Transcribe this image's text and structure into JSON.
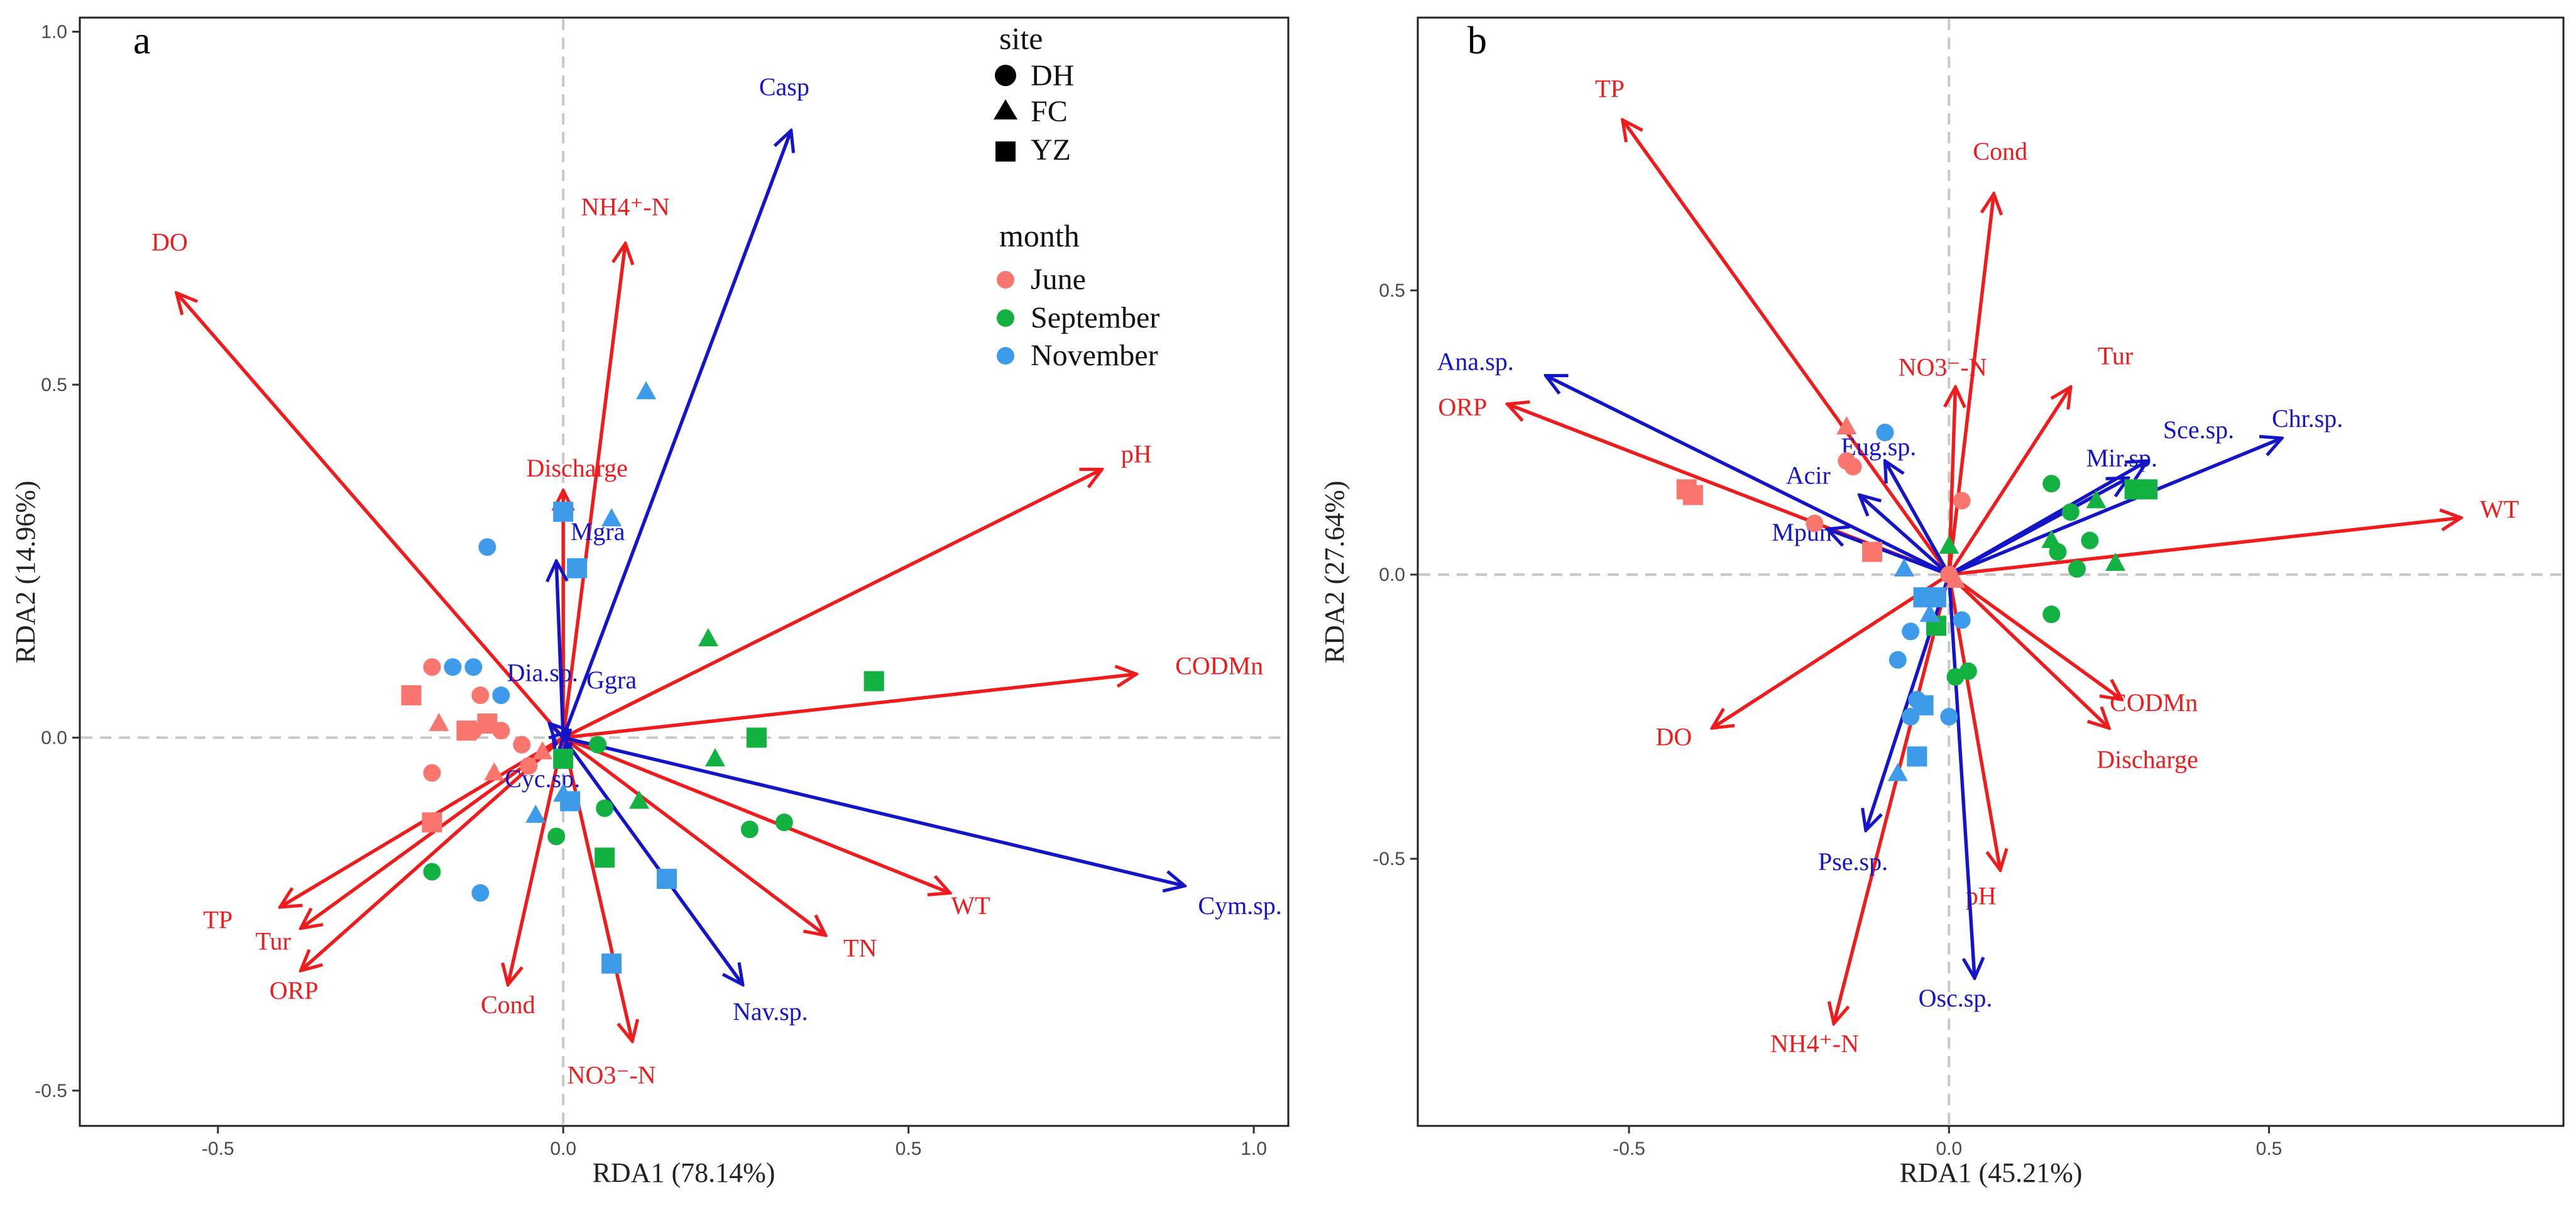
{
  "colors": {
    "env": "#ee1c1c",
    "species": "#1515c8",
    "June": "#f8766d",
    "September": "#13b141",
    "November": "#3d9be9"
  },
  "chart_data": [
    {
      "type": "scatter",
      "panel": "a",
      "xlabel": "RDA1 (78.14%)",
      "ylabel": "RDA2 (14.96%)",
      "xlim": [
        -0.7,
        1.05
      ],
      "ylim": [
        -0.55,
        1.02
      ],
      "xticks": [
        -0.5,
        0.0,
        0.5,
        1.0
      ],
      "xtick_labels": [
        "-0.5",
        "0.0",
        "0.5",
        "1.0"
      ],
      "yticks": [
        -0.5,
        0.0,
        0.5,
        1.0
      ],
      "ytick_labels": [
        "-0.5",
        "0.0",
        "0.5",
        "1.0"
      ],
      "legend": {
        "site_title": "site",
        "sites": [
          {
            "label": "DH",
            "shape": "circle"
          },
          {
            "label": "FC",
            "shape": "triangle"
          },
          {
            "label": "YZ",
            "shape": "square"
          }
        ],
        "month_title": "month",
        "months": [
          {
            "label": "June",
            "color_key": "June"
          },
          {
            "label": "September",
            "color_key": "September"
          },
          {
            "label": "November",
            "color_key": "November"
          }
        ]
      },
      "env_vectors": [
        {
          "name": "DO",
          "x": -0.56,
          "y": 0.63,
          "label": "DO",
          "lx": -0.57,
          "ly": 0.69
        },
        {
          "name": "NH4+-N",
          "x": 0.09,
          "y": 0.7,
          "label": "NH4⁺-N",
          "lx": 0.09,
          "ly": 0.74
        },
        {
          "name": "Discharge",
          "x": 0.0,
          "y": 0.35,
          "label": "Discharge",
          "lx": 0.02,
          "ly": 0.37
        },
        {
          "name": "pH",
          "x": 0.78,
          "y": 0.38,
          "label": "pH",
          "lx": 0.83,
          "ly": 0.39
        },
        {
          "name": "CODMn",
          "x": 0.83,
          "y": 0.09,
          "label": "CODMn",
          "lx": 0.95,
          "ly": 0.09
        },
        {
          "name": "WT",
          "x": 0.56,
          "y": -0.22,
          "label": "WT",
          "lx": 0.59,
          "ly": -0.25
        },
        {
          "name": "TN",
          "x": 0.38,
          "y": -0.28,
          "label": "TN",
          "lx": 0.43,
          "ly": -0.31
        },
        {
          "name": "NO3--N",
          "x": 0.1,
          "y": -0.43,
          "label": "NO3⁻-N",
          "lx": 0.07,
          "ly": -0.49
        },
        {
          "name": "Cond",
          "x": -0.08,
          "y": -0.35,
          "label": "Cond",
          "lx": -0.08,
          "ly": -0.39
        },
        {
          "name": "ORP",
          "x": -0.38,
          "y": -0.33,
          "label": "ORP",
          "lx": -0.39,
          "ly": -0.37
        },
        {
          "name": "Tur",
          "x": -0.38,
          "y": -0.27,
          "label": "Tur",
          "lx": -0.42,
          "ly": -0.3
        },
        {
          "name": "TP",
          "x": -0.41,
          "y": -0.24,
          "label": "TP",
          "lx": -0.5,
          "ly": -0.27
        }
      ],
      "species_vectors": [
        {
          "name": "Casp",
          "x": 0.33,
          "y": 0.86,
          "label": "Casp",
          "lx": 0.32,
          "ly": 0.91
        },
        {
          "name": "Mgra",
          "x": -0.01,
          "y": 0.25,
          "label": "Mgra",
          "lx": 0.05,
          "ly": 0.28
        },
        {
          "name": "Dia.sp.",
          "x": -0.02,
          "y": 0.02,
          "label": "Dia.sp.",
          "lx": -0.03,
          "ly": 0.08
        },
        {
          "name": "Ggra",
          "x": 0.01,
          "y": 0.01,
          "label": "Ggra",
          "lx": 0.07,
          "ly": 0.07
        },
        {
          "name": "Cyc.sp.",
          "x": -0.01,
          "y": -0.03,
          "label": "Cyc.sp.",
          "lx": -0.03,
          "ly": -0.07
        },
        {
          "name": "Nav.sp.",
          "x": 0.26,
          "y": -0.35,
          "label": "Nav.sp.",
          "lx": 0.3,
          "ly": -0.4
        },
        {
          "name": "Cym.sp.",
          "x": 0.9,
          "y": -0.21,
          "label": "Cym.sp.",
          "lx": 0.98,
          "ly": -0.25
        }
      ],
      "points": [
        {
          "site": "DH",
          "month": "June",
          "x": -0.19,
          "y": 0.1
        },
        {
          "site": "DH",
          "month": "June",
          "x": -0.12,
          "y": 0.06
        },
        {
          "site": "DH",
          "month": "June",
          "x": -0.09,
          "y": 0.01
        },
        {
          "site": "DH",
          "month": "June",
          "x": -0.13,
          "y": 0.01
        },
        {
          "site": "DH",
          "month": "June",
          "x": -0.19,
          "y": -0.05
        },
        {
          "site": "DH",
          "month": "June",
          "x": -0.06,
          "y": -0.01
        },
        {
          "site": "DH",
          "month": "June",
          "x": -0.05,
          "y": -0.04
        },
        {
          "site": "FC",
          "month": "June",
          "x": -0.18,
          "y": 0.02
        },
        {
          "site": "FC",
          "month": "June",
          "x": -0.03,
          "y": -0.02
        },
        {
          "site": "FC",
          "month": "June",
          "x": -0.1,
          "y": -0.05
        },
        {
          "site": "YZ",
          "month": "June",
          "x": -0.22,
          "y": 0.06
        },
        {
          "site": "YZ",
          "month": "June",
          "x": -0.14,
          "y": 0.01
        },
        {
          "site": "YZ",
          "month": "June",
          "x": -0.11,
          "y": 0.02
        },
        {
          "site": "YZ",
          "month": "June",
          "x": -0.19,
          "y": -0.12
        },
        {
          "site": "DH",
          "month": "September",
          "x": -0.19,
          "y": -0.19
        },
        {
          "site": "DH",
          "month": "September",
          "x": -0.01,
          "y": -0.14
        },
        {
          "site": "DH",
          "month": "September",
          "x": 0.06,
          "y": -0.1
        },
        {
          "site": "DH",
          "month": "September",
          "x": 0.27,
          "y": -0.13
        },
        {
          "site": "DH",
          "month": "September",
          "x": 0.32,
          "y": -0.12
        },
        {
          "site": "DH",
          "month": "September",
          "x": 0.05,
          "y": -0.01
        },
        {
          "site": "DH",
          "month": "September",
          "x": 0.0,
          "y": -0.03
        },
        {
          "site": "FC",
          "month": "September",
          "x": 0.21,
          "y": 0.14
        },
        {
          "site": "FC",
          "month": "September",
          "x": 0.22,
          "y": -0.03
        },
        {
          "site": "FC",
          "month": "September",
          "x": 0.11,
          "y": -0.09
        },
        {
          "site": "YZ",
          "month": "September",
          "x": 0.45,
          "y": 0.08
        },
        {
          "site": "YZ",
          "month": "September",
          "x": 0.28,
          "y": 0.0
        },
        {
          "site": "YZ",
          "month": "September",
          "x": 0.06,
          "y": -0.17
        },
        {
          "site": "YZ",
          "month": "September",
          "x": 0.0,
          "y": -0.03
        },
        {
          "site": "DH",
          "month": "November",
          "x": -0.11,
          "y": 0.27
        },
        {
          "site": "DH",
          "month": "November",
          "x": -0.16,
          "y": 0.1
        },
        {
          "site": "DH",
          "month": "November",
          "x": -0.13,
          "y": 0.1
        },
        {
          "site": "DH",
          "month": "November",
          "x": -0.09,
          "y": 0.06
        },
        {
          "site": "DH",
          "month": "November",
          "x": -0.12,
          "y": -0.22
        },
        {
          "site": "FC",
          "month": "November",
          "x": 0.12,
          "y": 0.49
        },
        {
          "site": "FC",
          "month": "November",
          "x": 0.07,
          "y": 0.31
        },
        {
          "site": "FC",
          "month": "November",
          "x": -0.04,
          "y": -0.11
        },
        {
          "site": "FC",
          "month": "November",
          "x": 0.0,
          "y": -0.08
        },
        {
          "site": "YZ",
          "month": "November",
          "x": 0.0,
          "y": 0.32
        },
        {
          "site": "YZ",
          "month": "November",
          "x": 0.02,
          "y": 0.24
        },
        {
          "site": "YZ",
          "month": "November",
          "x": 0.15,
          "y": -0.2
        },
        {
          "site": "YZ",
          "month": "November",
          "x": 0.07,
          "y": -0.32
        },
        {
          "site": "YZ",
          "month": "November",
          "x": 0.01,
          "y": -0.09
        }
      ]
    },
    {
      "type": "scatter",
      "panel": "b",
      "xlabel": "RDA1 (45.21%)",
      "ylabel": "RDA2 (27.64%)",
      "xlim": [
        -0.83,
        0.96
      ],
      "ylim": [
        -0.97,
        0.98
      ],
      "xticks": [
        -0.5,
        0.0,
        0.5
      ],
      "xtick_labels": [
        "-0.5",
        "0.0",
        "0.5"
      ],
      "yticks": [
        -0.5,
        0.0,
        0.5
      ],
      "ytick_labels": [
        "-0.5",
        "0.0",
        "0.5"
      ],
      "env_vectors": [
        {
          "name": "TP",
          "x": -0.51,
          "y": 0.8,
          "label": "TP",
          "lx": -0.53,
          "ly": 0.84
        },
        {
          "name": "Cond",
          "x": 0.07,
          "y": 0.67,
          "label": "Cond",
          "lx": 0.08,
          "ly": 0.73
        },
        {
          "name": "NO3--N",
          "x": 0.01,
          "y": 0.33,
          "label": "NO3⁻-N",
          "lx": -0.01,
          "ly": 0.35
        },
        {
          "name": "Tur",
          "x": 0.19,
          "y": 0.33,
          "label": "Tur",
          "lx": 0.26,
          "ly": 0.37
        },
        {
          "name": "ORP",
          "x": -0.69,
          "y": 0.3,
          "label": "ORP",
          "lx": -0.76,
          "ly": 0.28
        },
        {
          "name": "WT",
          "x": 0.8,
          "y": 0.1,
          "label": "WT",
          "lx": 0.86,
          "ly": 0.1
        },
        {
          "name": "CODMn",
          "x": 0.27,
          "y": -0.22,
          "label": "CODMn",
          "lx": 0.32,
          "ly": -0.24
        },
        {
          "name": "Discharge",
          "x": 0.25,
          "y": -0.27,
          "label": "Discharge",
          "lx": 0.31,
          "ly": -0.34
        },
        {
          "name": "DO",
          "x": -0.37,
          "y": -0.27,
          "label": "DO",
          "lx": -0.43,
          "ly": -0.3
        },
        {
          "name": "pH",
          "x": 0.08,
          "y": -0.52,
          "label": "pH",
          "lx": 0.05,
          "ly": -0.58
        },
        {
          "name": "NH4+-N",
          "x": -0.18,
          "y": -0.79,
          "label": "NH4⁺-N",
          "lx": -0.21,
          "ly": -0.84
        }
      ],
      "species_vectors": [
        {
          "name": "Ana.sp.",
          "x": -0.63,
          "y": 0.35,
          "label": "Ana.sp.",
          "lx": -0.74,
          "ly": 0.36
        },
        {
          "name": "Chr.sp.",
          "x": 0.52,
          "y": 0.24,
          "label": "Chr.sp.",
          "lx": 0.56,
          "ly": 0.26
        },
        {
          "name": "Sce.sp.",
          "x": 0.31,
          "y": 0.2,
          "label": "Sce.sp.",
          "lx": 0.39,
          "ly": 0.24
        },
        {
          "name": "Mir.sp.",
          "x": 0.28,
          "y": 0.17,
          "label": "Mir.sp.",
          "lx": 0.27,
          "ly": 0.19
        },
        {
          "name": "Eug.sp.",
          "x": -0.1,
          "y": 0.2,
          "label": "Eug.sp.",
          "lx": -0.11,
          "ly": 0.21
        },
        {
          "name": "Acir",
          "x": -0.14,
          "y": 0.14,
          "label": "Acir",
          "lx": -0.22,
          "ly": 0.16
        },
        {
          "name": "Mpun",
          "x": -0.19,
          "y": 0.08,
          "label": "Mpun",
          "lx": -0.23,
          "ly": 0.06
        },
        {
          "name": "Pse.sp.",
          "x": -0.13,
          "y": -0.45,
          "label": "Pse.sp.",
          "lx": -0.15,
          "ly": -0.52
        },
        {
          "name": "Osc.sp.",
          "x": 0.04,
          "y": -0.71,
          "label": "Osc.sp.",
          "lx": 0.01,
          "ly": -0.76
        }
      ],
      "points": [
        {
          "site": "DH",
          "month": "June",
          "x": -0.15,
          "y": 0.19
        },
        {
          "site": "DH",
          "month": "June",
          "x": -0.16,
          "y": 0.2
        },
        {
          "site": "DH",
          "month": "June",
          "x": 0.02,
          "y": 0.13
        },
        {
          "site": "DH",
          "month": "June",
          "x": -0.21,
          "y": 0.09
        },
        {
          "site": "DH",
          "month": "June",
          "x": 0.0,
          "y": 0.0
        },
        {
          "site": "FC",
          "month": "June",
          "x": -0.16,
          "y": 0.26
        },
        {
          "site": "FC",
          "month": "June",
          "x": 0.01,
          "y": -0.01
        },
        {
          "site": "YZ",
          "month": "June",
          "x": -0.41,
          "y": 0.15
        },
        {
          "site": "YZ",
          "month": "June",
          "x": -0.4,
          "y": 0.14
        },
        {
          "site": "YZ",
          "month": "June",
          "x": -0.12,
          "y": 0.04
        },
        {
          "site": "DH",
          "month": "September",
          "x": 0.16,
          "y": 0.16
        },
        {
          "site": "DH",
          "month": "September",
          "x": 0.19,
          "y": 0.11
        },
        {
          "site": "DH",
          "month": "September",
          "x": 0.22,
          "y": 0.06
        },
        {
          "site": "DH",
          "month": "September",
          "x": 0.17,
          "y": 0.04
        },
        {
          "site": "DH",
          "month": "September",
          "x": 0.2,
          "y": 0.01
        },
        {
          "site": "DH",
          "month": "September",
          "x": 0.16,
          "y": -0.07
        },
        {
          "site": "DH",
          "month": "September",
          "x": 0.03,
          "y": -0.17
        },
        {
          "site": "DH",
          "month": "September",
          "x": 0.01,
          "y": -0.18
        },
        {
          "site": "FC",
          "month": "September",
          "x": 0.23,
          "y": 0.13
        },
        {
          "site": "FC",
          "month": "September",
          "x": 0.16,
          "y": 0.06
        },
        {
          "site": "FC",
          "month": "September",
          "x": 0.26,
          "y": 0.02
        },
        {
          "site": "FC",
          "month": "September",
          "x": 0.0,
          "y": 0.05
        },
        {
          "site": "YZ",
          "month": "September",
          "x": 0.29,
          "y": 0.15
        },
        {
          "site": "YZ",
          "month": "September",
          "x": 0.31,
          "y": 0.15
        },
        {
          "site": "YZ",
          "month": "September",
          "x": -0.02,
          "y": -0.09
        },
        {
          "site": "DH",
          "month": "November",
          "x": -0.1,
          "y": 0.25
        },
        {
          "site": "DH",
          "month": "November",
          "x": -0.06,
          "y": -0.1
        },
        {
          "site": "DH",
          "month": "November",
          "x": -0.08,
          "y": -0.15
        },
        {
          "site": "DH",
          "month": "November",
          "x": -0.05,
          "y": -0.22
        },
        {
          "site": "DH",
          "month": "November",
          "x": 0.0,
          "y": -0.25
        },
        {
          "site": "DH",
          "month": "November",
          "x": -0.06,
          "y": -0.25
        },
        {
          "site": "DH",
          "month": "November",
          "x": 0.02,
          "y": -0.08
        },
        {
          "site": "FC",
          "month": "November",
          "x": -0.07,
          "y": 0.01
        },
        {
          "site": "FC",
          "month": "November",
          "x": -0.08,
          "y": -0.35
        },
        {
          "site": "FC",
          "month": "November",
          "x": -0.03,
          "y": -0.07
        },
        {
          "site": "YZ",
          "month": "November",
          "x": -0.04,
          "y": -0.04
        },
        {
          "site": "YZ",
          "month": "November",
          "x": -0.04,
          "y": -0.23
        },
        {
          "site": "YZ",
          "month": "November",
          "x": -0.05,
          "y": -0.32
        },
        {
          "site": "YZ",
          "month": "November",
          "x": -0.02,
          "y": -0.04
        }
      ]
    }
  ]
}
